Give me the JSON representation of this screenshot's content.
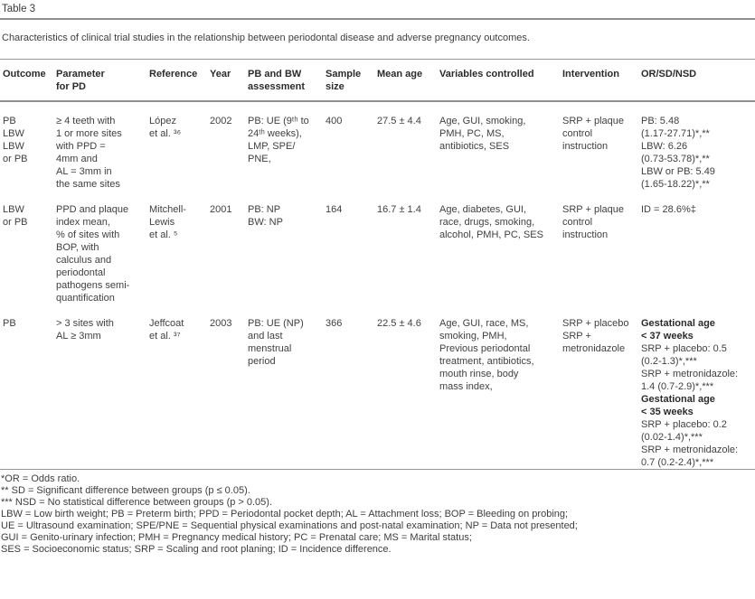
{
  "page": {
    "table_label": "Table 3",
    "caption": "Characteristics of clinical trial studies in the relationship between periodontal disease and adverse pregnancy outcomes."
  },
  "colors": {
    "rule_gray": "#8f8f8f",
    "text": "#404040"
  },
  "table": {
    "headers": [
      {
        "id": "outcome",
        "lines": [
          "Outcome"
        ]
      },
      {
        "id": "parameter",
        "lines": [
          "Parameter",
          "for PD"
        ]
      },
      {
        "id": "reference",
        "lines": [
          "Reference"
        ]
      },
      {
        "id": "year",
        "lines": [
          "Year"
        ]
      },
      {
        "id": "assessment",
        "lines": [
          "PB and BW",
          "assessment"
        ]
      },
      {
        "id": "sample_size",
        "lines": [
          "Sample",
          "size"
        ]
      },
      {
        "id": "mean_age",
        "lines": [
          "Mean age"
        ]
      },
      {
        "id": "variables",
        "lines": [
          "Variables controlled"
        ]
      },
      {
        "id": "intervention",
        "lines": [
          "Intervention"
        ]
      },
      {
        "id": "or_sd_nsd",
        "lines": [
          "OR/SD/NSD"
        ]
      }
    ],
    "rows": [
      {
        "outcome": [
          "PB",
          "LBW",
          "LBW",
          "or PB"
        ],
        "parameter": [
          "≥ 4 teeth with",
          "1 or more sites",
          "with PPD =",
          "4mm and",
          "AL = 3mm in",
          "the same sites"
        ],
        "reference": [
          "López",
          "et al. ³⁶"
        ],
        "year": [
          "2002"
        ],
        "assessment": [
          "PB: UE (9ᵗʰ to",
          "24ᵗʰ weeks),",
          "LMP, SPE/",
          "PNE,"
        ],
        "sample_size": [
          "400"
        ],
        "mean_age": [
          "27.5 ± 4.4"
        ],
        "variables": [
          "Age, GUI, smoking,",
          "PMH, PC, MS,",
          "antibiotics, SES"
        ],
        "intervention": [
          "SRP + plaque",
          "control",
          "instruction"
        ],
        "or_sd_nsd": [
          "PB: 5.48",
          "(1.17-27.71)*,**",
          "LBW: 6.26",
          "(0.73-53.78)*,**",
          "LBW or PB: 5.49",
          "(1.65-18.22)*,**"
        ]
      },
      {
        "outcome": [
          "LBW",
          "or PB"
        ],
        "parameter": [
          "PPD and plaque",
          "index mean,",
          "% of sites with",
          "BOP, with",
          "calculus and",
          "periodontal",
          "pathogens semi-",
          "quantification"
        ],
        "reference": [
          "Mitchell-",
          "Lewis",
          "et al. ⁵"
        ],
        "year": [
          "2001"
        ],
        "assessment": [
          "PB: NP",
          "BW: NP"
        ],
        "sample_size": [
          "164"
        ],
        "mean_age": [
          "16.7 ± 1.4"
        ],
        "variables": [
          "Age, diabetes, GUI,",
          "race, drugs, smoking,",
          "alcohol, PMH, PC, SES"
        ],
        "intervention": [
          "SRP + plaque",
          "control",
          "instruction"
        ],
        "or_sd_nsd": [
          "ID = 28.6%‡"
        ]
      },
      {
        "outcome": [
          "PB"
        ],
        "parameter": [
          "> 3 sites with",
          "AL ≥ 3mm"
        ],
        "reference": [
          "Jeffcoat",
          "et al. ³⁷"
        ],
        "year": [
          "2003"
        ],
        "assessment": [
          "PB: UE (NP)",
          "and last",
          "menstrual",
          "period"
        ],
        "sample_size": [
          "366"
        ],
        "mean_age": [
          "22.5 ± 4.6"
        ],
        "variables": [
          "Age, GUI, race, MS,",
          "smoking, PMH,",
          "Previous periodontal",
          "treatment, antibiotics,",
          "mouth rinse, body",
          "mass index,"
        ],
        "intervention": [
          "SRP + placebo",
          "SRP +",
          "metronidazole"
        ],
        "or_sd_nsd": [
          {
            "text": "Gestational age",
            "bold": true
          },
          {
            "text": "< 37 weeks",
            "bold": true
          },
          "SRP + placebo: 0.5",
          "(0.2-1.3)*,***",
          "SRP + metronidazole:",
          "1.4 (0.7-2.9)*,***",
          {
            "text": "Gestational age",
            "bold": true
          },
          {
            "text": "< 35 weeks",
            "bold": true
          },
          "SRP + placebo: 0.2",
          "(0.02-1.4)*,***",
          "SRP + metronidazole:",
          "0.7 (0.2-2.4)*,***"
        ]
      }
    ]
  },
  "footnotes": [
    "*OR = Odds ratio.",
    "** SD = Significant difference between groups (p ≤ 0.05).",
    "*** NSD = No statistical difference between groups (p > 0.05).",
    "LBW = Low birth weight; PB = Preterm birth; PPD = Periodontal pocket depth; AL = Attachment loss; BOP = Bleeding on probing;",
    "UE = Ultrasound examination; SPE/PNE = Sequential physical examinations and post-natal examination; NP = Data not presented;",
    "GUI = Genito-urinary infection; PMH = Pregnancy medical history; PC = Prenatal care; MS = Marital status;",
    "SES = Socioeconomic status; SRP = Scaling and root planing; ID = Incidence difference."
  ]
}
